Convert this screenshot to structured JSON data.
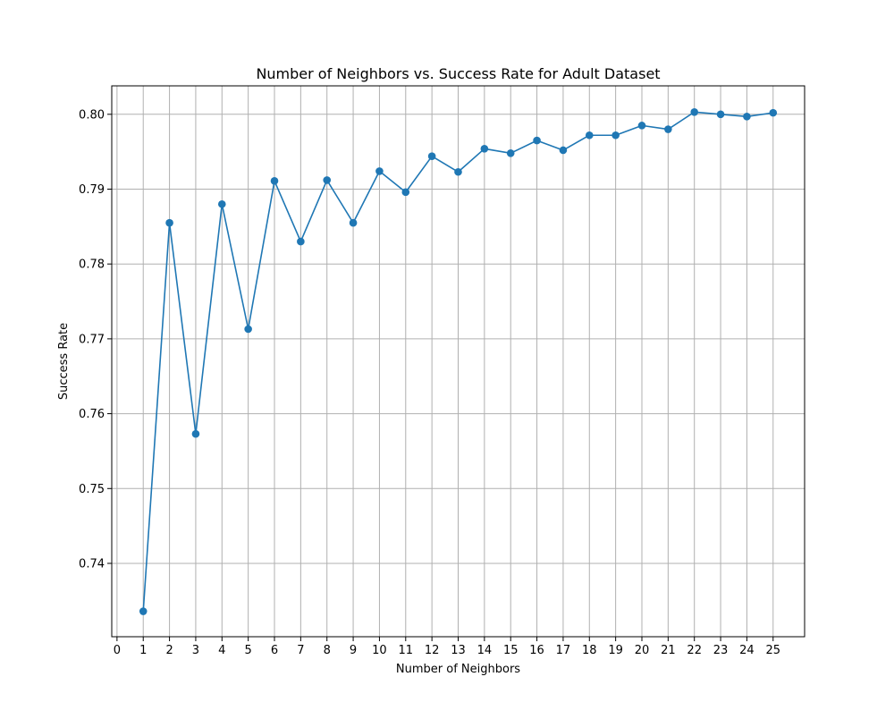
{
  "chart_data": {
    "type": "line",
    "title": "Number of Neighbors vs. Success Rate for Adult Dataset",
    "xlabel": "Number of Neighbors",
    "ylabel": "Success Rate",
    "x": [
      1,
      2,
      3,
      4,
      5,
      6,
      7,
      8,
      9,
      10,
      11,
      12,
      13,
      14,
      15,
      16,
      17,
      18,
      19,
      20,
      21,
      22,
      23,
      24,
      25
    ],
    "series": [
      {
        "values": [
          0.7336,
          0.7855,
          0.7573,
          0.788,
          0.7713,
          0.7911,
          0.783,
          0.7912,
          0.7855,
          0.7924,
          0.7896,
          0.7944,
          0.7923,
          0.7954,
          0.7948,
          0.7965,
          0.7952,
          0.7972,
          0.7972,
          0.7985,
          0.798,
          0.8003,
          0.8,
          0.7997,
          0.8002
        ],
        "color": "#1f77b4",
        "marker": "circle"
      }
    ],
    "xlim": [
      -0.2,
      26.2
    ],
    "ylim": [
      0.7302,
      0.8038
    ],
    "xticks": [
      0,
      1,
      2,
      3,
      4,
      5,
      6,
      7,
      8,
      9,
      10,
      11,
      12,
      13,
      14,
      15,
      16,
      17,
      18,
      19,
      20,
      21,
      22,
      23,
      24,
      25
    ],
    "yticks": [
      0.74,
      0.75,
      0.76,
      0.77,
      0.78,
      0.79,
      0.8
    ],
    "ytick_labels": [
      "0.74",
      "0.75",
      "0.76",
      "0.77",
      "0.78",
      "0.79",
      "0.80"
    ],
    "grid": true,
    "grid_color": "#b0b0b0"
  }
}
